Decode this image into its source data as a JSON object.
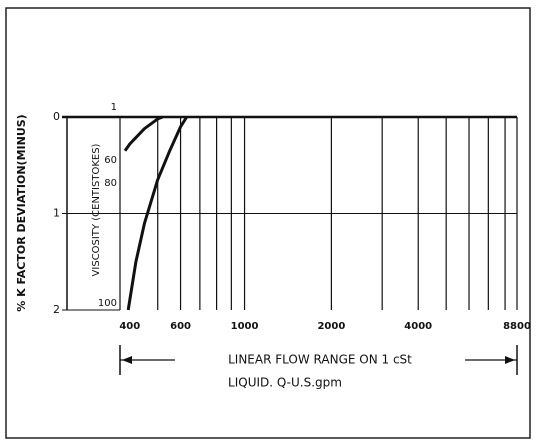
{
  "chart_data": {
    "type": "line",
    "ylabel": "% K FACTOR DEVIATION(MINUS)",
    "viscosity_label": "VISCOSITY (CENTISTOKES)",
    "viscosity_ticks": [
      1,
      60,
      80,
      100
    ],
    "xlim": [
      370,
      8800
    ],
    "xticks": [
      400,
      600,
      1000,
      2000,
      4000,
      8800
    ],
    "xminor": [
      500,
      600,
      700,
      800,
      900,
      1000,
      2000,
      3000,
      4000,
      5000,
      6000,
      7000,
      8000,
      8800
    ],
    "log_x": true,
    "ylim": [
      0,
      2
    ],
    "yticks": [
      0,
      1,
      2
    ],
    "y_inverted": true,
    "series": [
      {
        "color": "#111111",
        "x": [
          385,
          400,
          450,
          500,
          520
        ],
        "values": [
          0.35,
          0.28,
          0.12,
          0.02,
          0
        ]
      },
      {
        "color": "#111111",
        "x": [
          395,
          420,
          450,
          500,
          550,
          600,
          630
        ],
        "values": [
          2,
          1.5,
          1.1,
          0.65,
          0.35,
          0.1,
          0
        ]
      }
    ],
    "range_annotation": [
      "LINEAR FLOW RANGE ON 1 cSt",
      "LIQUID. Q-U.S.gpm"
    ]
  }
}
